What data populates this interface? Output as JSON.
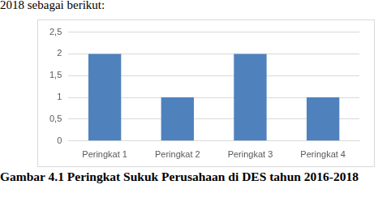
{
  "chart_data": {
    "type": "bar",
    "title": "Gambar 4.1 Peringkat Sukuk Perusahaan di DES tahun 2016-2018",
    "annotations": [
      "2018 sebagai berikut:"
    ],
    "categories": [
      "Peringkat 1",
      "Peringkat 2",
      "Peringkat 3",
      "Peringkat 4"
    ],
    "values": [
      2,
      1,
      2,
      1
    ],
    "color": "#4f81bd",
    "ylim": [
      0,
      2.5
    ],
    "yticks": [
      0,
      {
        "value": 0.5,
        "label": "0,5"
      },
      1,
      {
        "value": 1.5,
        "label": "1,5"
      },
      2,
      {
        "value": 2.5,
        "label": "2,5"
      }
    ],
    "grid": true
  }
}
